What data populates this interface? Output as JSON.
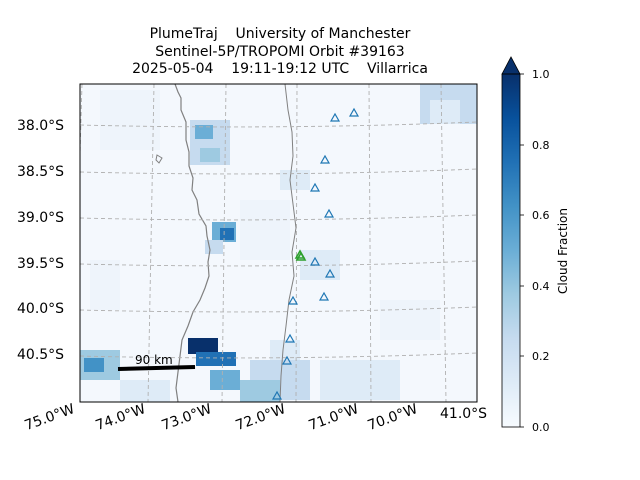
{
  "title": {
    "line1": "PlumeTraj    University of Manchester",
    "line2": "Sentinel-5P/TROPOMI Orbit #39163",
    "line3": "2025-05-04    19:11-19:12 UTC    Villarrica"
  },
  "map": {
    "lat_labels": [
      "38.0°S",
      "38.5°S",
      "39.0°S",
      "39.5°S",
      "40.0°S",
      "40.5°S"
    ],
    "lat_values": [
      -38.0,
      -38.5,
      -39.0,
      -39.5,
      -40.0,
      -40.5
    ],
    "lon_labels": [
      "75.0°W",
      "74.0°W",
      "73.0°W",
      "72.0°W",
      "71.0°W",
      "70.0°W"
    ],
    "lon_values": [
      -75.0,
      -74.0,
      -73.0,
      -72.0,
      -71.0,
      -70.0
    ],
    "corner_lat_label": "41.0°S",
    "scale_bar_label": "90 km",
    "gridlines": true,
    "volcano_color": "#2ca02c",
    "other_volcano_color": "#1f77b4",
    "coastline_color": "#808080",
    "colormap": "Blues",
    "volcano_markers": [
      {
        "name": "Villarrica",
        "type": "target"
      },
      {
        "type": "other"
      },
      {
        "type": "other"
      },
      {
        "type": "other"
      },
      {
        "type": "other"
      },
      {
        "type": "other"
      },
      {
        "type": "other"
      },
      {
        "type": "other"
      },
      {
        "type": "other"
      },
      {
        "type": "other"
      },
      {
        "type": "other"
      },
      {
        "type": "other"
      },
      {
        "type": "other"
      }
    ]
  },
  "colorbar": {
    "label": "Cloud Fraction",
    "ticks": [
      "0.0",
      "0.2",
      "0.4",
      "0.6",
      "0.8",
      "1.0"
    ],
    "range": [
      0.0,
      1.0
    ],
    "extend": "max"
  }
}
